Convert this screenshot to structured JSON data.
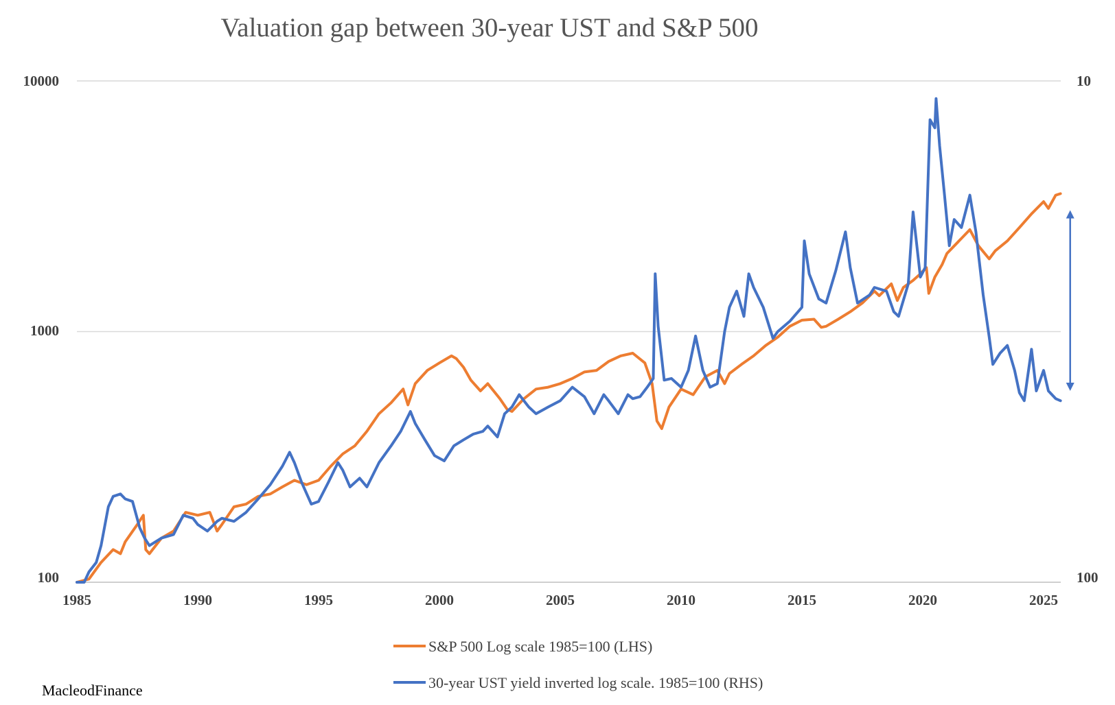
{
  "chart_data": {
    "type": "line",
    "title": "Valuation gap between 30-year UST and S&P 500",
    "x_range": [
      1985,
      2025.75
    ],
    "x_ticks": [
      "1985",
      "1990",
      "1995",
      "2000",
      "2005",
      "2010",
      "2015",
      "2020",
      "2025"
    ],
    "left_axis": {
      "scale": "log",
      "range": [
        100,
        10000
      ],
      "ticks": [
        "100",
        "1000",
        "10000"
      ]
    },
    "right_axis": {
      "scale": "log",
      "range": [
        100,
        10
      ],
      "ticks": [
        "100",
        "10"
      ]
    },
    "gridlines": "horizontal",
    "legend": "bottom-center",
    "credit": "MacleodFinance",
    "gap_arrow": {
      "x": 2026.1,
      "y_range": [
        580,
        3050
      ]
    },
    "series": [
      {
        "name": "S&P 500 Log scale 1985=100 (LHS)",
        "color": "#ed7d31",
        "axis": "left",
        "points": [
          [
            1985,
            100
          ],
          [
            1985.5,
            103
          ],
          [
            1986,
            120
          ],
          [
            1986.5,
            135
          ],
          [
            1986.8,
            130
          ],
          [
            1987,
            145
          ],
          [
            1987.5,
            170
          ],
          [
            1987.75,
            185
          ],
          [
            1987.85,
            135
          ],
          [
            1988,
            130
          ],
          [
            1988.5,
            150
          ],
          [
            1989,
            160
          ],
          [
            1989.5,
            190
          ],
          [
            1990,
            185
          ],
          [
            1990.5,
            190
          ],
          [
            1990.8,
            160
          ],
          [
            1991,
            170
          ],
          [
            1991.5,
            200
          ],
          [
            1992,
            205
          ],
          [
            1992.5,
            220
          ],
          [
            1993,
            225
          ],
          [
            1993.5,
            240
          ],
          [
            1994,
            255
          ],
          [
            1994.5,
            245
          ],
          [
            1995,
            255
          ],
          [
            1995.5,
            290
          ],
          [
            1996,
            325
          ],
          [
            1996.5,
            350
          ],
          [
            1997,
            400
          ],
          [
            1997.5,
            470
          ],
          [
            1998,
            520
          ],
          [
            1998.5,
            590
          ],
          [
            1998.7,
            510
          ],
          [
            1999,
            620
          ],
          [
            1999.5,
            700
          ],
          [
            2000,
            750
          ],
          [
            2000.5,
            800
          ],
          [
            2000.7,
            780
          ],
          [
            2001,
            720
          ],
          [
            2001.3,
            640
          ],
          [
            2001.7,
            580
          ],
          [
            2002,
            620
          ],
          [
            2002.5,
            540
          ],
          [
            2002.8,
            490
          ],
          [
            2003,
            480
          ],
          [
            2003.5,
            540
          ],
          [
            2004,
            590
          ],
          [
            2004.5,
            600
          ],
          [
            2005,
            620
          ],
          [
            2005.5,
            650
          ],
          [
            2006,
            690
          ],
          [
            2006.5,
            700
          ],
          [
            2007,
            760
          ],
          [
            2007.5,
            800
          ],
          [
            2008,
            820
          ],
          [
            2008.5,
            750
          ],
          [
            2008.8,
            620
          ],
          [
            2009,
            440
          ],
          [
            2009.2,
            410
          ],
          [
            2009.5,
            500
          ],
          [
            2010,
            590
          ],
          [
            2010.5,
            560
          ],
          [
            2011,
            660
          ],
          [
            2011.5,
            700
          ],
          [
            2011.8,
            620
          ],
          [
            2012,
            680
          ],
          [
            2012.5,
            740
          ],
          [
            2013,
            800
          ],
          [
            2013.5,
            880
          ],
          [
            2014,
            950
          ],
          [
            2014.5,
            1050
          ],
          [
            2015,
            1110
          ],
          [
            2015.5,
            1120
          ],
          [
            2015.8,
            1040
          ],
          [
            2016,
            1050
          ],
          [
            2016.5,
            1120
          ],
          [
            2017,
            1200
          ],
          [
            2017.5,
            1300
          ],
          [
            2018,
            1450
          ],
          [
            2018.2,
            1390
          ],
          [
            2018.7,
            1550
          ],
          [
            2018.95,
            1330
          ],
          [
            2019.2,
            1500
          ],
          [
            2019.6,
            1600
          ],
          [
            2019.9,
            1700
          ],
          [
            2020.15,
            1800
          ],
          [
            2020.25,
            1420
          ],
          [
            2020.5,
            1650
          ],
          [
            2020.8,
            1850
          ],
          [
            2021,
            2050
          ],
          [
            2021.5,
            2300
          ],
          [
            2021.95,
            2550
          ],
          [
            2022.3,
            2200
          ],
          [
            2022.75,
            1950
          ],
          [
            2023,
            2100
          ],
          [
            2023.5,
            2300
          ],
          [
            2024,
            2600
          ],
          [
            2024.5,
            2950
          ],
          [
            2025,
            3300
          ],
          [
            2025.2,
            3100
          ],
          [
            2025.5,
            3500
          ],
          [
            2025.7,
            3550
          ]
        ]
      },
      {
        "name": "30-year UST yield inverted log scale. 1985=100 (RHS)",
        "color": "#4472c4",
        "axis": "right",
        "points": [
          [
            1985,
            100
          ],
          [
            1985.3,
            100
          ],
          [
            1985.5,
            110
          ],
          [
            1985.8,
            120
          ],
          [
            1986,
            140
          ],
          [
            1986.3,
            200
          ],
          [
            1986.5,
            220
          ],
          [
            1986.8,
            225
          ],
          [
            1987,
            215
          ],
          [
            1987.3,
            210
          ],
          [
            1987.6,
            165
          ],
          [
            1987.8,
            150
          ],
          [
            1988,
            140
          ],
          [
            1988.5,
            150
          ],
          [
            1989,
            155
          ],
          [
            1989.4,
            185
          ],
          [
            1989.8,
            180
          ],
          [
            1990,
            170
          ],
          [
            1990.4,
            160
          ],
          [
            1990.8,
            175
          ],
          [
            1991,
            180
          ],
          [
            1991.5,
            175
          ],
          [
            1992,
            190
          ],
          [
            1992.5,
            215
          ],
          [
            1993,
            245
          ],
          [
            1993.5,
            290
          ],
          [
            1993.8,
            330
          ],
          [
            1994,
            300
          ],
          [
            1994.3,
            250
          ],
          [
            1994.7,
            205
          ],
          [
            1995,
            210
          ],
          [
            1995.4,
            250
          ],
          [
            1995.8,
            300
          ],
          [
            1996,
            280
          ],
          [
            1996.3,
            240
          ],
          [
            1996.7,
            260
          ],
          [
            1997,
            240
          ],
          [
            1997.5,
            300
          ],
          [
            1998,
            350
          ],
          [
            1998.4,
            400
          ],
          [
            1998.8,
            480
          ],
          [
            1999,
            430
          ],
          [
            1999.4,
            370
          ],
          [
            1999.8,
            320
          ],
          [
            2000.2,
            305
          ],
          [
            2000.6,
            350
          ],
          [
            2001,
            370
          ],
          [
            2001.4,
            390
          ],
          [
            2001.8,
            400
          ],
          [
            2002,
            420
          ],
          [
            2002.4,
            380
          ],
          [
            2002.7,
            470
          ],
          [
            2003,
            500
          ],
          [
            2003.3,
            560
          ],
          [
            2003.7,
            500
          ],
          [
            2004,
            470
          ],
          [
            2004.5,
            500
          ],
          [
            2005,
            530
          ],
          [
            2005.5,
            600
          ],
          [
            2006,
            550
          ],
          [
            2006.4,
            470
          ],
          [
            2006.8,
            560
          ],
          [
            2007,
            530
          ],
          [
            2007.4,
            470
          ],
          [
            2007.8,
            560
          ],
          [
            2008,
            540
          ],
          [
            2008.3,
            550
          ],
          [
            2008.6,
            600
          ],
          [
            2008.85,
            650
          ],
          [
            2008.93,
            1700
          ],
          [
            2009.05,
            1050
          ],
          [
            2009.3,
            640
          ],
          [
            2009.6,
            650
          ],
          [
            2010,
            600
          ],
          [
            2010.3,
            700
          ],
          [
            2010.6,
            960
          ],
          [
            2010.9,
            700
          ],
          [
            2011.2,
            600
          ],
          [
            2011.5,
            620
          ],
          [
            2011.8,
            1000
          ],
          [
            2012,
            1250
          ],
          [
            2012.3,
            1450
          ],
          [
            2012.6,
            1150
          ],
          [
            2012.8,
            1700
          ],
          [
            2013,
            1500
          ],
          [
            2013.4,
            1250
          ],
          [
            2013.8,
            940
          ],
          [
            2014,
            1000
          ],
          [
            2014.5,
            1100
          ],
          [
            2015,
            1250
          ],
          [
            2015.1,
            2300
          ],
          [
            2015.3,
            1700
          ],
          [
            2015.7,
            1350
          ],
          [
            2016,
            1300
          ],
          [
            2016.4,
            1750
          ],
          [
            2016.8,
            2500
          ],
          [
            2017,
            1800
          ],
          [
            2017.3,
            1300
          ],
          [
            2017.8,
            1400
          ],
          [
            2018,
            1500
          ],
          [
            2018.5,
            1450
          ],
          [
            2018.8,
            1200
          ],
          [
            2019,
            1150
          ],
          [
            2019.4,
            1550
          ],
          [
            2019.6,
            3000
          ],
          [
            2019.9,
            1650
          ],
          [
            2020.1,
            1800
          ],
          [
            2020.3,
            7000
          ],
          [
            2020.5,
            6500
          ],
          [
            2020.55,
            8500
          ],
          [
            2020.7,
            5500
          ],
          [
            2020.9,
            3500
          ],
          [
            2021.1,
            2200
          ],
          [
            2021.3,
            2800
          ],
          [
            2021.6,
            2600
          ],
          [
            2021.95,
            3500
          ],
          [
            2022.2,
            2500
          ],
          [
            2022.5,
            1400
          ],
          [
            2022.75,
            950
          ],
          [
            2022.9,
            740
          ],
          [
            2023.2,
            820
          ],
          [
            2023.5,
            880
          ],
          [
            2023.8,
            700
          ],
          [
            2024,
            570
          ],
          [
            2024.2,
            530
          ],
          [
            2024.5,
            850
          ],
          [
            2024.7,
            580
          ],
          [
            2025,
            700
          ],
          [
            2025.2,
            580
          ],
          [
            2025.5,
            540
          ],
          [
            2025.7,
            530
          ]
        ]
      }
    ]
  }
}
